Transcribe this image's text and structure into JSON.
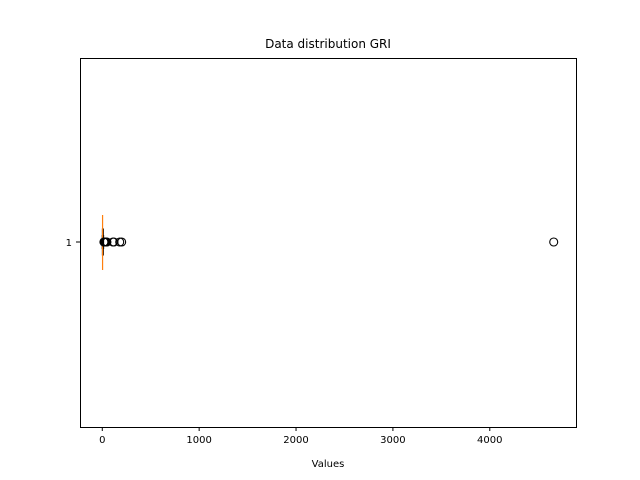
{
  "chart_data": {
    "type": "boxplot",
    "orientation": "horizontal",
    "title": "Data distribution GRI",
    "xlabel": "Values",
    "ylabel": "",
    "xlim": [
      -230,
      4890
    ],
    "xticks": [
      0,
      1000,
      2000,
      3000,
      4000
    ],
    "yticks": [
      "1"
    ],
    "grid": false,
    "box": {
      "category": "1",
      "whisker_low": 0,
      "q1": 1,
      "median": 3,
      "q3": 6,
      "whisker_high": 14,
      "outliers": [
        17,
        20,
        24,
        28,
        33,
        40,
        48,
        110,
        120,
        180,
        200,
        4660
      ]
    },
    "colors": {
      "median": "#ff7f0e",
      "box": "#000000"
    }
  }
}
